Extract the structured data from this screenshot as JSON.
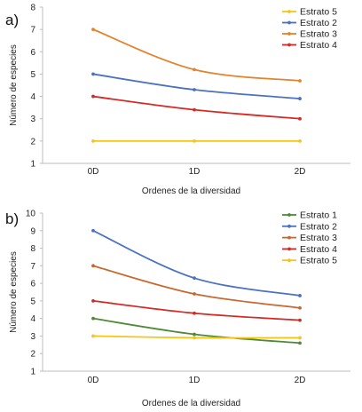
{
  "chart_data": [
    {
      "type": "line",
      "panel_label": "a)",
      "categories": [
        "0D",
        "1D",
        "2D"
      ],
      "xlabel": "Ordenes de la diversidad",
      "ylabel": "Número de especies",
      "ylim": [
        1,
        8
      ],
      "yticks": [
        1,
        2,
        3,
        4,
        5,
        6,
        7,
        8
      ],
      "grid": false,
      "legend_position": "top-right",
      "series": [
        {
          "name": "Estrato 5",
          "color": "#f5c518",
          "values": [
            2,
            2,
            2
          ]
        },
        {
          "name": "Estrato 2",
          "color": "#4a72c0",
          "values": [
            5,
            4.3,
            3.9
          ]
        },
        {
          "name": "Estrato 3",
          "color": "#e5822e",
          "values": [
            7,
            5.2,
            4.7
          ]
        },
        {
          "name": "Estrato 4",
          "color": "#d42a24",
          "values": [
            4,
            3.4,
            3
          ]
        }
      ]
    },
    {
      "type": "line",
      "panel_label": "b)",
      "categories": [
        "0D",
        "1D",
        "2D"
      ],
      "xlabel": "Ordenes de la diversidad",
      "ylabel": "Número de especies",
      "ylim": [
        1,
        10
      ],
      "yticks": [
        1,
        2,
        3,
        4,
        5,
        6,
        7,
        8,
        9,
        10
      ],
      "grid": false,
      "legend_position": "top-right",
      "series": [
        {
          "name": "Estrato 1",
          "color": "#4e8a34",
          "values": [
            4,
            3.1,
            2.6
          ]
        },
        {
          "name": "Estrato 2",
          "color": "#4a72c0",
          "values": [
            9,
            6.3,
            5.3
          ]
        },
        {
          "name": "Estrato 3",
          "color": "#c8682e",
          "values": [
            7,
            5.4,
            4.6
          ]
        },
        {
          "name": "Estrato 4",
          "color": "#d42a24",
          "values": [
            5,
            4.3,
            3.9
          ]
        },
        {
          "name": "Estrato 5",
          "color": "#f5c518",
          "values": [
            3,
            2.9,
            2.9
          ]
        }
      ]
    }
  ]
}
